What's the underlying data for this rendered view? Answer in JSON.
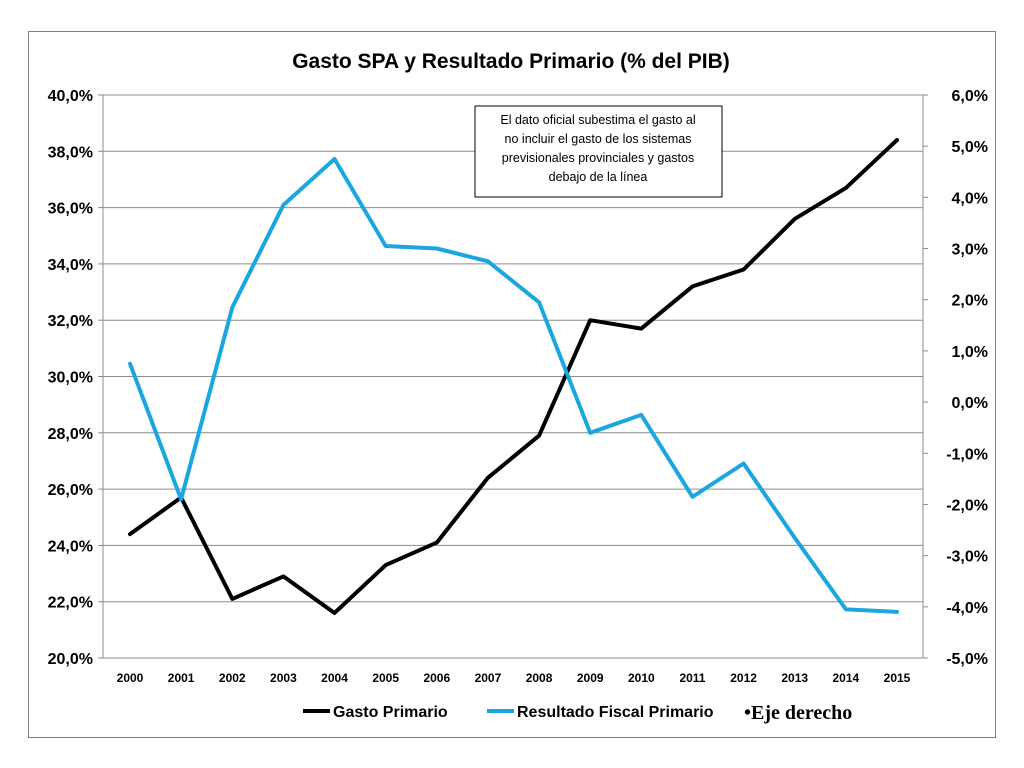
{
  "chart_data": {
    "type": "line",
    "title": "Gasto SPA y Resultado Primario (% del PIB)",
    "categories": [
      "2000",
      "2001",
      "2002",
      "2003",
      "2004",
      "2005",
      "2006",
      "2007",
      "2008",
      "2009",
      "2010",
      "2011",
      "2012",
      "2013",
      "2014",
      "2015"
    ],
    "left_axis": {
      "min": 20,
      "max": 40,
      "step": 2,
      "tick_labels": [
        "40,0%",
        "38,0%",
        "36,0%",
        "34,0%",
        "32,0%",
        "30,0%",
        "28,0%",
        "26,0%",
        "24,0%",
        "22,0%",
        "20,0%"
      ]
    },
    "right_axis": {
      "min": -5,
      "max": 6,
      "step": 1,
      "tick_labels": [
        "6,0%",
        "5,0%",
        "4,0%",
        "3,0%",
        "2,0%",
        "1,0%",
        "0,0%",
        "-1,0%",
        "-2,0%",
        "-3,0%",
        "-4,0%",
        "-5,0%"
      ]
    },
    "grid": true,
    "legend_position": "bottom",
    "series": [
      {
        "name": "Gasto Primario",
        "axis": "left",
        "color": "#000000",
        "values": [
          24.4,
          25.7,
          22.1,
          22.9,
          21.6,
          23.3,
          24.1,
          26.4,
          27.9,
          32.0,
          31.7,
          33.2,
          33.8,
          35.6,
          36.7,
          38.4
        ]
      },
      {
        "name": "Resultado Fiscal Primario",
        "axis": "right",
        "color": "#1aa7e1",
        "values": [
          0.75,
          -1.9,
          1.85,
          3.85,
          4.75,
          3.05,
          3.0,
          2.75,
          1.95,
          -0.6,
          -0.25,
          -1.85,
          -1.2,
          -2.65,
          -4.05,
          -4.1
        ]
      }
    ],
    "annotation": {
      "lines": [
        "El dato oficial subestima el gasto  al",
        "no incluir el gasto de los sistemas",
        "previsionales provinciales y gastos",
        "debajo de la línea"
      ]
    },
    "axis_note": "•Eje derecho"
  }
}
